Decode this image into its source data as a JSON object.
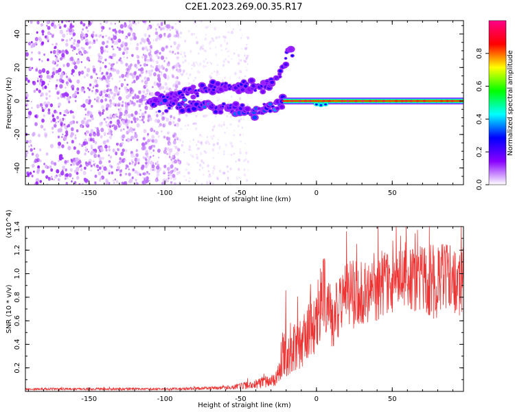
{
  "title": "C2E1.2023.269.00.35.R17",
  "chart_data": [
    {
      "type": "heatmap",
      "xlabel": "Height of straight line (km)",
      "ylabel": "Frequency (Hz)",
      "xlim": [
        -192,
        97
      ],
      "ylim": [
        -50,
        48
      ],
      "xticks": [
        -150,
        -100,
        -50,
        0,
        50
      ],
      "yticks": [
        -40,
        -20,
        0,
        20,
        40
      ],
      "colorbar": {
        "label": "Normalized spectral amplitude",
        "range": [
          0,
          1
        ],
        "ticks": [
          "0.0",
          "0.2",
          "0.4",
          "0.6",
          "0.8"
        ],
        "colors": [
          "#ffffff",
          "#8800ff",
          "#0000ff",
          "#00ffff",
          "#00ff00",
          "#ffff00",
          "#ff0000",
          "#ff0088"
        ]
      },
      "features": [
        {
          "kind": "noise_scatter",
          "x_range": [
            -192,
            -90
          ],
          "y_range": [
            -50,
            48
          ],
          "amplitude": 0.1
        },
        {
          "kind": "faint_scatter",
          "x_range": [
            -90,
            -45
          ],
          "y_range": [
            -50,
            48
          ],
          "amplitude": 0.03
        },
        {
          "kind": "streak",
          "points": [
            [
              -105,
              0
            ],
            [
              -70,
              8
            ],
            [
              -45,
              8
            ],
            [
              -30,
              10
            ],
            [
              -22,
              20
            ],
            [
              -15,
              33
            ]
          ],
          "amplitude": 0.2
        },
        {
          "kind": "streak",
          "points": [
            [
              -110,
              -1
            ],
            [
              -60,
              -4
            ],
            [
              -40,
              -8
            ],
            [
              -28,
              -3
            ],
            [
              -20,
              0
            ]
          ],
          "amplitude": 0.25
        },
        {
          "kind": "carrier_line",
          "y": 0,
          "x_range": [
            -22,
            97
          ],
          "amplitude": 0.85
        }
      ]
    },
    {
      "type": "line",
      "xlabel": "Height of straight line (km)",
      "ylabel": "SNR (10 * v/v)",
      "multiplier": "(x10^4)",
      "xlim": [
        -192,
        97
      ],
      "ylim": [
        0,
        1.4
      ],
      "xticks": [
        -150,
        -100,
        -50,
        0,
        50
      ],
      "yticks": [
        0.2,
        0.4,
        0.6,
        0.8,
        1.0,
        1.2,
        1.4
      ],
      "ytick_labels": [
        "0.2",
        "0.4",
        "0.6",
        "0.8",
        "1.0",
        "1.2",
        "1.4"
      ],
      "color": "#ee3333",
      "envelope": [
        {
          "x": -192,
          "mean": 0.02,
          "spread": 0.01
        },
        {
          "x": -100,
          "mean": 0.02,
          "spread": 0.01
        },
        {
          "x": -60,
          "mean": 0.03,
          "spread": 0.015
        },
        {
          "x": -40,
          "mean": 0.06,
          "spread": 0.04
        },
        {
          "x": -30,
          "mean": 0.1,
          "spread": 0.06
        },
        {
          "x": -25,
          "mean": 0.15,
          "spread": 0.1
        },
        {
          "x": -22,
          "mean": 0.35,
          "spread": 0.25
        },
        {
          "x": -10,
          "mean": 0.4,
          "spread": 0.2
        },
        {
          "x": 0,
          "mean": 0.6,
          "spread": 0.3
        },
        {
          "x": 5,
          "mean": 0.85,
          "spread": 0.35
        },
        {
          "x": 10,
          "mean": 0.6,
          "spread": 0.25
        },
        {
          "x": 20,
          "mean": 0.8,
          "spread": 0.3
        },
        {
          "x": 40,
          "mean": 0.9,
          "spread": 0.3
        },
        {
          "x": 60,
          "mean": 0.95,
          "spread": 0.25
        },
        {
          "x": 80,
          "mean": 0.95,
          "spread": 0.35
        },
        {
          "x": 97,
          "mean": 0.95,
          "spread": 0.3
        }
      ]
    }
  ]
}
